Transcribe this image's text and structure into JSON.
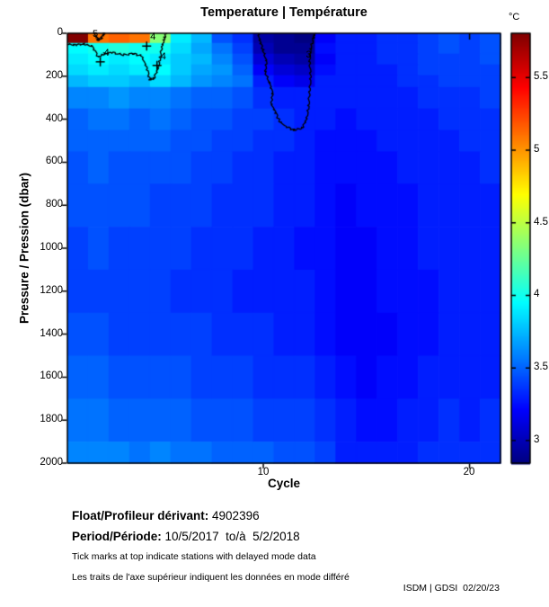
{
  "title": "Temperature | Température",
  "colorbar": {
    "unit_label": "°C",
    "ticks": [
      3,
      3.5,
      4,
      4.5,
      5,
      5.5
    ],
    "min": 2.845,
    "max": 5.805,
    "colormap": "jet"
  },
  "axes": {
    "x_label": "Cycle",
    "x_ticks": [
      10,
      20
    ],
    "x_range": [
      0.5,
      21.5
    ],
    "y_label": "Pressure / Pression (dbar)",
    "y_ticks": [
      0,
      200,
      400,
      600,
      800,
      1000,
      1200,
      1400,
      1600,
      1800,
      2000
    ],
    "y_range": [
      0,
      2000
    ],
    "top_tick_cycles": [
      20
    ]
  },
  "footer": {
    "float_label": "Float/Profileur dérivant:",
    "float_value": " 4902396",
    "period_label": "Period/Période:",
    "period_value": " 10/5/2017  to/à  5/2/2018",
    "note_en": "Tick marks at top indicate stations with delayed mode data",
    "note_fr": "Les traits de l'axe supérieur indiquent les données en mode différé",
    "credit": "ISDM | GDSI  02/20/23"
  },
  "chart_data": {
    "type": "heatmap",
    "title": "Temperature | Température",
    "xlabel": "Cycle",
    "ylabel": "Pressure / Pression (dbar)",
    "unit": "°C",
    "colormap": "jet",
    "value_range": [
      2.845,
      5.805
    ],
    "cycles": [
      1,
      2,
      3,
      4,
      5,
      6,
      7,
      8,
      9,
      10,
      11,
      12,
      13,
      14,
      15,
      16,
      17,
      18,
      19,
      20,
      21
    ],
    "depth_edges": [
      0,
      45,
      95,
      145,
      195,
      250,
      350,
      450,
      550,
      700,
      900,
      1100,
      1300,
      1500,
      1700,
      1900,
      2000
    ],
    "values": [
      [
        5.8,
        5.1,
        5.15,
        5.1,
        4.35,
        3.9,
        3.75,
        3.45,
        3.35,
        2.95,
        2.9,
        2.85,
        3.2,
        3.3,
        3.3,
        3.35,
        3.35,
        3.4,
        3.45,
        3.4,
        3.45
      ],
      [
        3.95,
        4.0,
        4.05,
        4.0,
        4.0,
        3.85,
        3.7,
        3.55,
        3.4,
        3.0,
        2.9,
        2.9,
        3.25,
        3.3,
        3.3,
        3.35,
        3.35,
        3.4,
        3.45,
        3.4,
        3.45
      ],
      [
        3.9,
        3.95,
        3.9,
        3.95,
        3.9,
        3.8,
        3.75,
        3.6,
        3.45,
        3.1,
        3.0,
        2.95,
        3.2,
        3.3,
        3.3,
        3.35,
        3.35,
        3.4,
        3.4,
        3.4,
        3.45
      ],
      [
        3.85,
        3.9,
        3.85,
        3.9,
        3.95,
        3.8,
        3.7,
        3.65,
        3.5,
        3.2,
        3.1,
        3.05,
        3.25,
        3.3,
        3.3,
        3.3,
        3.35,
        3.4,
        3.4,
        3.4,
        3.4
      ],
      [
        3.75,
        3.8,
        3.8,
        3.75,
        3.85,
        3.75,
        3.65,
        3.6,
        3.55,
        3.3,
        3.2,
        3.15,
        3.3,
        3.3,
        3.3,
        3.3,
        3.35,
        3.35,
        3.4,
        3.4,
        3.4
      ],
      [
        3.6,
        3.6,
        3.65,
        3.6,
        3.6,
        3.55,
        3.5,
        3.5,
        3.45,
        3.35,
        3.3,
        3.3,
        3.3,
        3.3,
        3.3,
        3.3,
        3.3,
        3.35,
        3.35,
        3.35,
        3.4
      ],
      [
        3.5,
        3.55,
        3.55,
        3.5,
        3.55,
        3.5,
        3.45,
        3.45,
        3.4,
        3.4,
        3.35,
        3.3,
        3.3,
        3.25,
        3.3,
        3.3,
        3.3,
        3.3,
        3.35,
        3.35,
        3.35
      ],
      [
        3.5,
        3.5,
        3.5,
        3.5,
        3.5,
        3.45,
        3.45,
        3.4,
        3.4,
        3.35,
        3.35,
        3.3,
        3.25,
        3.25,
        3.25,
        3.3,
        3.3,
        3.3,
        3.3,
        3.35,
        3.35
      ],
      [
        3.45,
        3.5,
        3.45,
        3.45,
        3.45,
        3.45,
        3.4,
        3.4,
        3.35,
        3.35,
        3.3,
        3.3,
        3.25,
        3.25,
        3.25,
        3.25,
        3.3,
        3.3,
        3.3,
        3.3,
        3.35
      ],
      [
        3.45,
        3.45,
        3.45,
        3.45,
        3.4,
        3.4,
        3.4,
        3.35,
        3.35,
        3.35,
        3.3,
        3.3,
        3.25,
        3.2,
        3.25,
        3.25,
        3.25,
        3.3,
        3.3,
        3.3,
        3.3
      ],
      [
        3.4,
        3.45,
        3.4,
        3.4,
        3.4,
        3.4,
        3.35,
        3.35,
        3.35,
        3.3,
        3.3,
        3.25,
        3.25,
        3.2,
        3.2,
        3.25,
        3.25,
        3.3,
        3.3,
        3.3,
        3.3
      ],
      [
        3.4,
        3.4,
        3.4,
        3.4,
        3.4,
        3.35,
        3.35,
        3.35,
        3.3,
        3.3,
        3.3,
        3.3,
        3.25,
        3.2,
        3.2,
        3.25,
        3.25,
        3.25,
        3.3,
        3.3,
        3.3
      ],
      [
        3.45,
        3.45,
        3.4,
        3.4,
        3.4,
        3.4,
        3.4,
        3.35,
        3.35,
        3.35,
        3.3,
        3.3,
        3.25,
        3.2,
        3.2,
        3.2,
        3.25,
        3.25,
        3.3,
        3.3,
        3.3
      ],
      [
        3.5,
        3.5,
        3.45,
        3.45,
        3.45,
        3.45,
        3.4,
        3.4,
        3.4,
        3.35,
        3.35,
        3.35,
        3.3,
        3.25,
        3.2,
        3.25,
        3.25,
        3.3,
        3.3,
        3.3,
        3.3
      ],
      [
        3.55,
        3.55,
        3.5,
        3.5,
        3.5,
        3.5,
        3.45,
        3.45,
        3.45,
        3.4,
        3.4,
        3.4,
        3.35,
        3.3,
        3.25,
        3.25,
        3.3,
        3.3,
        3.35,
        3.3,
        3.35
      ],
      [
        3.6,
        3.6,
        3.6,
        3.55,
        3.6,
        3.55,
        3.55,
        3.5,
        3.5,
        3.5,
        3.45,
        3.45,
        3.4,
        3.3,
        3.3,
        3.3,
        3.3,
        3.35,
        3.35,
        3.35,
        3.35
      ]
    ],
    "contour_levels": [
      3,
      4,
      5
    ],
    "contours": {
      "level5": [
        [
          1.8,
          0
        ],
        [
          1.9,
          16
        ],
        [
          2.0,
          32
        ],
        [
          2.15,
          22
        ],
        [
          2.25,
          6
        ],
        [
          2.3,
          0
        ]
      ],
      "level4": [
        [
          0.5,
          50
        ],
        [
          0.9,
          55
        ],
        [
          1.3,
          50
        ],
        [
          1.7,
          60
        ],
        [
          2.0,
          110
        ],
        [
          2.3,
          95
        ],
        [
          2.7,
          90
        ],
        [
          3.2,
          100
        ],
        [
          3.7,
          95
        ],
        [
          4.1,
          105
        ],
        [
          4.35,
          160
        ],
        [
          4.5,
          215
        ],
        [
          4.7,
          210
        ],
        [
          4.9,
          165
        ],
        [
          5.0,
          115
        ],
        [
          5.1,
          60
        ],
        [
          5.2,
          25
        ],
        [
          5.3,
          0
        ]
      ],
      "level3": [
        [
          9.75,
          0
        ],
        [
          9.85,
          40
        ],
        [
          10.0,
          80
        ],
        [
          10.15,
          130
        ],
        [
          10.1,
          180
        ],
        [
          10.3,
          230
        ],
        [
          10.45,
          280
        ],
        [
          10.4,
          330
        ],
        [
          10.6,
          370
        ],
        [
          10.8,
          410
        ],
        [
          11.1,
          435
        ],
        [
          11.5,
          450
        ],
        [
          11.9,
          440
        ],
        [
          12.1,
          400
        ],
        [
          12.2,
          340
        ],
        [
          12.25,
          270
        ],
        [
          12.3,
          200
        ],
        [
          12.25,
          130
        ],
        [
          12.3,
          70
        ],
        [
          12.45,
          20
        ],
        [
          12.5,
          0
        ]
      ]
    },
    "contour_labels": [
      {
        "text": "5",
        "cycle": 1.85,
        "pressure": 10,
        "plus": false
      },
      {
        "text": "4",
        "cycle": 2.4,
        "pressure": 95,
        "plus": true
      },
      {
        "text": "4",
        "cycle": 4.65,
        "pressure": 22,
        "plus": true
      },
      {
        "text": "4",
        "cycle": 5.15,
        "pressure": 112,
        "plus": true
      },
      {
        "text": "3",
        "cycle": 12.2,
        "pressure": 105,
        "plus": false
      }
    ]
  }
}
